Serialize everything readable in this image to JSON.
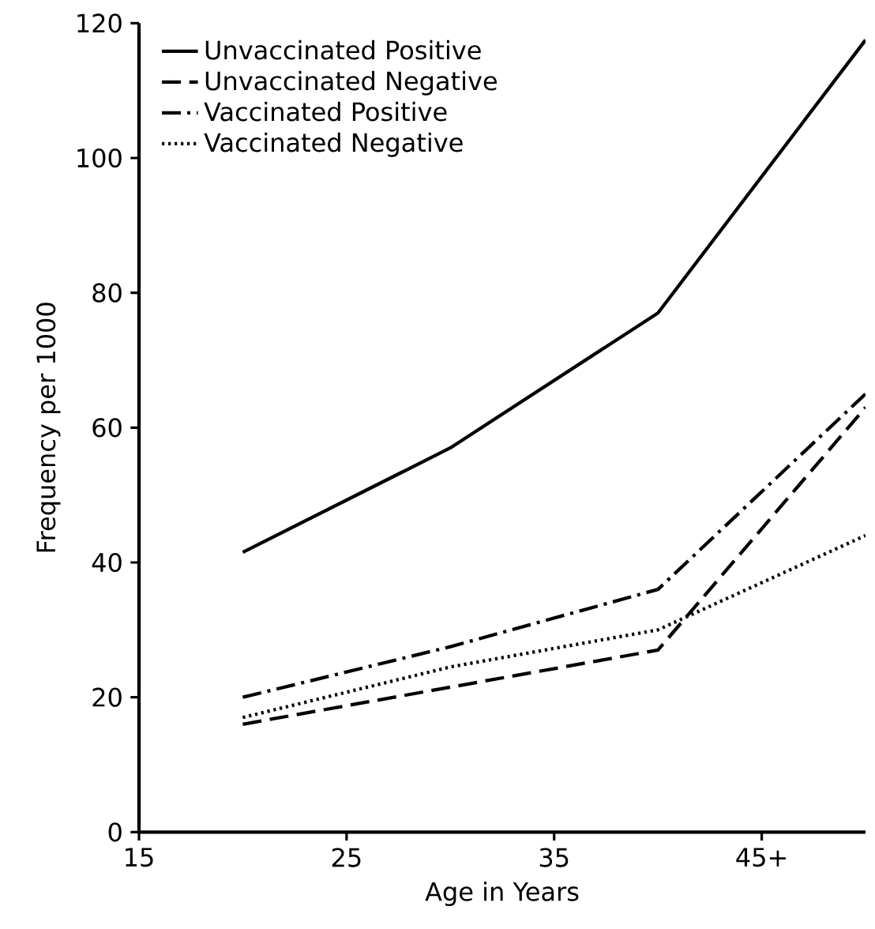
{
  "chart_data": {
    "type": "line",
    "xlabel": "Age in Years",
    "ylabel": "Frequency per 1000",
    "x": [
      20,
      30,
      40,
      50
    ],
    "series": [
      {
        "name": "Unvaccinated Positive",
        "color": "#000000",
        "line_style": "solid",
        "values": [
          41.5,
          57,
          77,
          117.5
        ]
      },
      {
        "name": "Unvaccinated Negative",
        "color": "#000000",
        "line_style": "dashed",
        "values": [
          16,
          21.5,
          27,
          63
        ]
      },
      {
        "name": "Vaccinated Positive",
        "color": "#000000",
        "line_style": "dashdot",
        "values": [
          20,
          27.5,
          36,
          65
        ]
      },
      {
        "name": "Vaccinated Negative",
        "color": "#000000",
        "line_style": "dotted",
        "values": [
          17,
          24.5,
          30,
          44
        ]
      }
    ],
    "xlim": [
      15,
      50
    ],
    "ylim": [
      0,
      120
    ],
    "xticks": [
      15,
      25,
      35,
      {
        "value": 45,
        "label": "45+"
      }
    ],
    "yticks": [
      0,
      20,
      40,
      60,
      80,
      100,
      120
    ],
    "grid": false,
    "legend": "top left",
    "marker": "none"
  }
}
